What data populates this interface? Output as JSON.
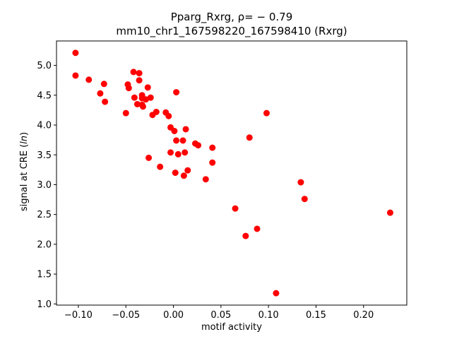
{
  "chart_data": {
    "type": "scatter",
    "title_line1": "Pparg_Rxrg, ρ= − 0.79",
    "title_line2": "mm10_chr1_167598220_167598410 (Rxrg)",
    "xlabel": "motif activity",
    "ylabel": "signal at CRE (ln)",
    "ylabel_prefix": "signal at CRE (",
    "ylabel_italic": "ln",
    "ylabel_suffix": ")",
    "xlim": [
      -0.123,
      0.2455
    ],
    "ylim": [
      0.98,
      5.41
    ],
    "xticks": [
      -0.1,
      -0.05,
      0.0,
      0.05,
      0.1,
      0.15,
      0.2
    ],
    "xtick_labels": [
      "−0.10",
      "−0.05",
      "0.00",
      "0.05",
      "0.10",
      "0.15",
      "0.20"
    ],
    "yticks": [
      1.0,
      1.5,
      2.0,
      2.5,
      3.0,
      3.5,
      4.0,
      4.5,
      5.0
    ],
    "ytick_labels": [
      "1.0",
      "1.5",
      "2.0",
      "2.5",
      "3.0",
      "3.5",
      "4.0",
      "4.5",
      "5.0"
    ],
    "marker_color": "#ff0000",
    "grid": false,
    "points": [
      {
        "x": -0.103,
        "y": 5.21
      },
      {
        "x": -0.103,
        "y": 4.83
      },
      {
        "x": -0.089,
        "y": 4.76
      },
      {
        "x": -0.073,
        "y": 4.69
      },
      {
        "x": -0.077,
        "y": 4.53
      },
      {
        "x": -0.072,
        "y": 4.39
      },
      {
        "x": -0.05,
        "y": 4.2
      },
      {
        "x": -0.048,
        "y": 4.68
      },
      {
        "x": -0.047,
        "y": 4.62
      },
      {
        "x": -0.042,
        "y": 4.89
      },
      {
        "x": -0.041,
        "y": 4.46
      },
      {
        "x": -0.036,
        "y": 4.87
      },
      {
        "x": -0.036,
        "y": 4.75
      },
      {
        "x": -0.038,
        "y": 4.35
      },
      {
        "x": -0.033,
        "y": 4.5
      },
      {
        "x": -0.033,
        "y": 4.45
      },
      {
        "x": -0.033,
        "y": 4.34
      },
      {
        "x": -0.032,
        "y": 4.31
      },
      {
        "x": -0.029,
        "y": 4.43
      },
      {
        "x": -0.027,
        "y": 4.63
      },
      {
        "x": -0.024,
        "y": 4.46
      },
      {
        "x": -0.022,
        "y": 4.17
      },
      {
        "x": -0.018,
        "y": 4.22
      },
      {
        "x": -0.008,
        "y": 4.21
      },
      {
        "x": -0.005,
        "y": 4.15
      },
      {
        "x": -0.003,
        "y": 3.96
      },
      {
        "x": 0.001,
        "y": 3.9
      },
      {
        "x": 0.003,
        "y": 4.55
      },
      {
        "x": 0.003,
        "y": 3.74
      },
      {
        "x": 0.005,
        "y": 3.51
      },
      {
        "x": -0.003,
        "y": 3.54
      },
      {
        "x": -0.026,
        "y": 3.45
      },
      {
        "x": -0.014,
        "y": 3.3
      },
      {
        "x": 0.002,
        "y": 3.2
      },
      {
        "x": 0.01,
        "y": 3.74
      },
      {
        "x": 0.012,
        "y": 3.54
      },
      {
        "x": 0.013,
        "y": 3.93
      },
      {
        "x": 0.011,
        "y": 3.15
      },
      {
        "x": 0.015,
        "y": 3.24
      },
      {
        "x": 0.023,
        "y": 3.69
      },
      {
        "x": 0.026,
        "y": 3.66
      },
      {
        "x": 0.034,
        "y": 3.09
      },
      {
        "x": 0.041,
        "y": 3.62
      },
      {
        "x": 0.041,
        "y": 3.37
      },
      {
        "x": 0.065,
        "y": 2.6
      },
      {
        "x": 0.076,
        "y": 2.14
      },
      {
        "x": 0.08,
        "y": 3.79
      },
      {
        "x": 0.088,
        "y": 2.26
      },
      {
        "x": 0.098,
        "y": 4.2
      },
      {
        "x": 0.108,
        "y": 1.18
      },
      {
        "x": 0.134,
        "y": 3.04
      },
      {
        "x": 0.138,
        "y": 2.76
      },
      {
        "x": 0.228,
        "y": 2.53
      }
    ]
  }
}
